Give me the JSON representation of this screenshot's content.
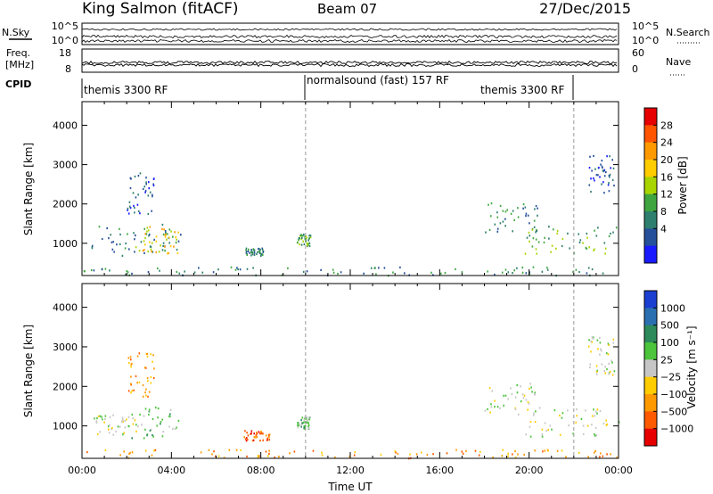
{
  "header": {
    "station": "King Salmon (fitACF)",
    "beam": "Beam 07",
    "date": "27/Dec/2015"
  },
  "panels": {
    "nsky": {
      "label": "N.Sky",
      "left_ticks": [
        "10^5",
        "10^0"
      ],
      "right_label": "N.Search",
      "right_ticks": [
        "10^5",
        "10^0"
      ]
    },
    "freq": {
      "label_line1": "Freq.",
      "label_line2": "[MHz]",
      "left_ticks": [
        "18",
        "8"
      ],
      "right_label": "Nave",
      "right_ticks": [
        "60",
        "0"
      ]
    },
    "cpid": {
      "label": "CPID",
      "segments": [
        {
          "label": "themis 3300 RF"
        },
        {
          "label": "normalsound (fast) 157 RF"
        },
        {
          "label": "themis 3300 RF"
        }
      ]
    }
  },
  "power_colorbar": {
    "title": "Power [dB]",
    "ticks": [
      "28",
      "24",
      "20",
      "16",
      "12",
      "8",
      "4"
    ],
    "colors": [
      "#e60000",
      "#ff5500",
      "#ff9900",
      "#ffcc00",
      "#a8d400",
      "#3fa63f",
      "#2e7f6e",
      "#26509a",
      "#1a1aff"
    ]
  },
  "velocity_colorbar": {
    "title": "Velocity [m s⁻¹]",
    "ticks": [
      "1000",
      "500",
      "100",
      "25",
      "−25",
      "−100",
      "−500",
      "−1000"
    ],
    "colors": [
      "#1a3fd1",
      "#2a6fb0",
      "#2d8a5a",
      "#4cc43c",
      "#c6c6c6",
      "#ffcc00",
      "#ff9900",
      "#ff5a00",
      "#e60000"
    ]
  },
  "axes": {
    "ylabel": "Slant Range [km]",
    "xlabel": "Time UT"
  },
  "chart_data": [
    {
      "type": "heatmap",
      "title": "",
      "quantity": "Power",
      "ylabel": "Slant Range [km]",
      "ylim": [
        180,
        4600
      ],
      "yticks": [
        1000,
        2000,
        3000,
        4000
      ],
      "xlim": [
        0,
        24
      ],
      "xticks": [
        "00:00",
        "04:00",
        "08:00",
        "12:00",
        "16:00",
        "20:00",
        "00:00"
      ],
      "colorbar": {
        "label": "Power [dB]",
        "ticks": [
          28,
          24,
          20,
          16,
          12,
          8,
          4
        ]
      },
      "mode_change_times_ut": [
        10.0,
        22.0
      ],
      "blobs": [
        {
          "t_start": 0.4,
          "t_end": 4.4,
          "r_min": 700,
          "r_max": 1500,
          "power_db": 10
        },
        {
          "t_start": 2.3,
          "t_end": 4.3,
          "r_min": 750,
          "r_max": 1450,
          "power_db": 20
        },
        {
          "t_start": 2.0,
          "t_end": 3.2,
          "r_min": 1750,
          "r_max": 2900,
          "power_db": 6
        },
        {
          "t_start": 7.3,
          "t_end": 8.1,
          "r_min": 700,
          "r_max": 900,
          "power_db": 9
        },
        {
          "t_start": 9.6,
          "t_end": 10.2,
          "r_min": 950,
          "r_max": 1250,
          "power_db": 12
        },
        {
          "t_start": 18.0,
          "t_end": 20.5,
          "r_min": 1300,
          "r_max": 2100,
          "power_db": 8
        },
        {
          "t_start": 19.8,
          "t_end": 24.0,
          "r_min": 750,
          "r_max": 1450,
          "power_db": 13
        },
        {
          "t_start": 22.6,
          "t_end": 23.8,
          "r_min": 2300,
          "r_max": 3300,
          "power_db": 4
        },
        {
          "t_start": 0.0,
          "t_end": 24.0,
          "r_min": 200,
          "r_max": 420,
          "power_db": 8
        }
      ]
    },
    {
      "type": "heatmap",
      "title": "",
      "quantity": "Velocity",
      "ylabel": "Slant Range [km]",
      "ylim": [
        180,
        4600
      ],
      "yticks": [
        1000,
        2000,
        3000,
        4000
      ],
      "xlim": [
        0,
        24
      ],
      "xticks": [
        "00:00",
        "04:00",
        "08:00",
        "12:00",
        "16:00",
        "20:00",
        "00:00"
      ],
      "xlabel": "Time UT",
      "colorbar": {
        "label": "Velocity [m s⁻¹]",
        "ticks": [
          1000,
          500,
          100,
          25,
          -25,
          -100,
          -500,
          -1000
        ]
      },
      "mode_change_times_ut": [
        10.0,
        22.0
      ],
      "blobs": [
        {
          "t_start": 0.4,
          "t_end": 2.4,
          "r_min": 800,
          "r_max": 1300,
          "velocity": 0
        },
        {
          "t_start": 2.2,
          "t_end": 4.3,
          "r_min": 700,
          "r_max": 1500,
          "velocity": 150
        },
        {
          "t_start": 2.0,
          "t_end": 3.2,
          "r_min": 1750,
          "r_max": 2900,
          "velocity": -60
        },
        {
          "t_start": 7.2,
          "t_end": 8.4,
          "r_min": 650,
          "r_max": 900,
          "velocity": -200
        },
        {
          "t_start": 9.6,
          "t_end": 10.2,
          "r_min": 950,
          "r_max": 1250,
          "velocity": 150
        },
        {
          "t_start": 18.0,
          "t_end": 20.5,
          "r_min": 1300,
          "r_max": 2100,
          "velocity": 0
        },
        {
          "t_start": 19.8,
          "t_end": 24.0,
          "r_min": 750,
          "r_max": 1450,
          "velocity": 0
        },
        {
          "t_start": 22.6,
          "t_end": 23.8,
          "r_min": 2300,
          "r_max": 3300,
          "velocity": 0
        },
        {
          "t_start": 0.0,
          "t_end": 24.0,
          "r_min": 200,
          "r_max": 420,
          "velocity": -100
        }
      ]
    }
  ]
}
